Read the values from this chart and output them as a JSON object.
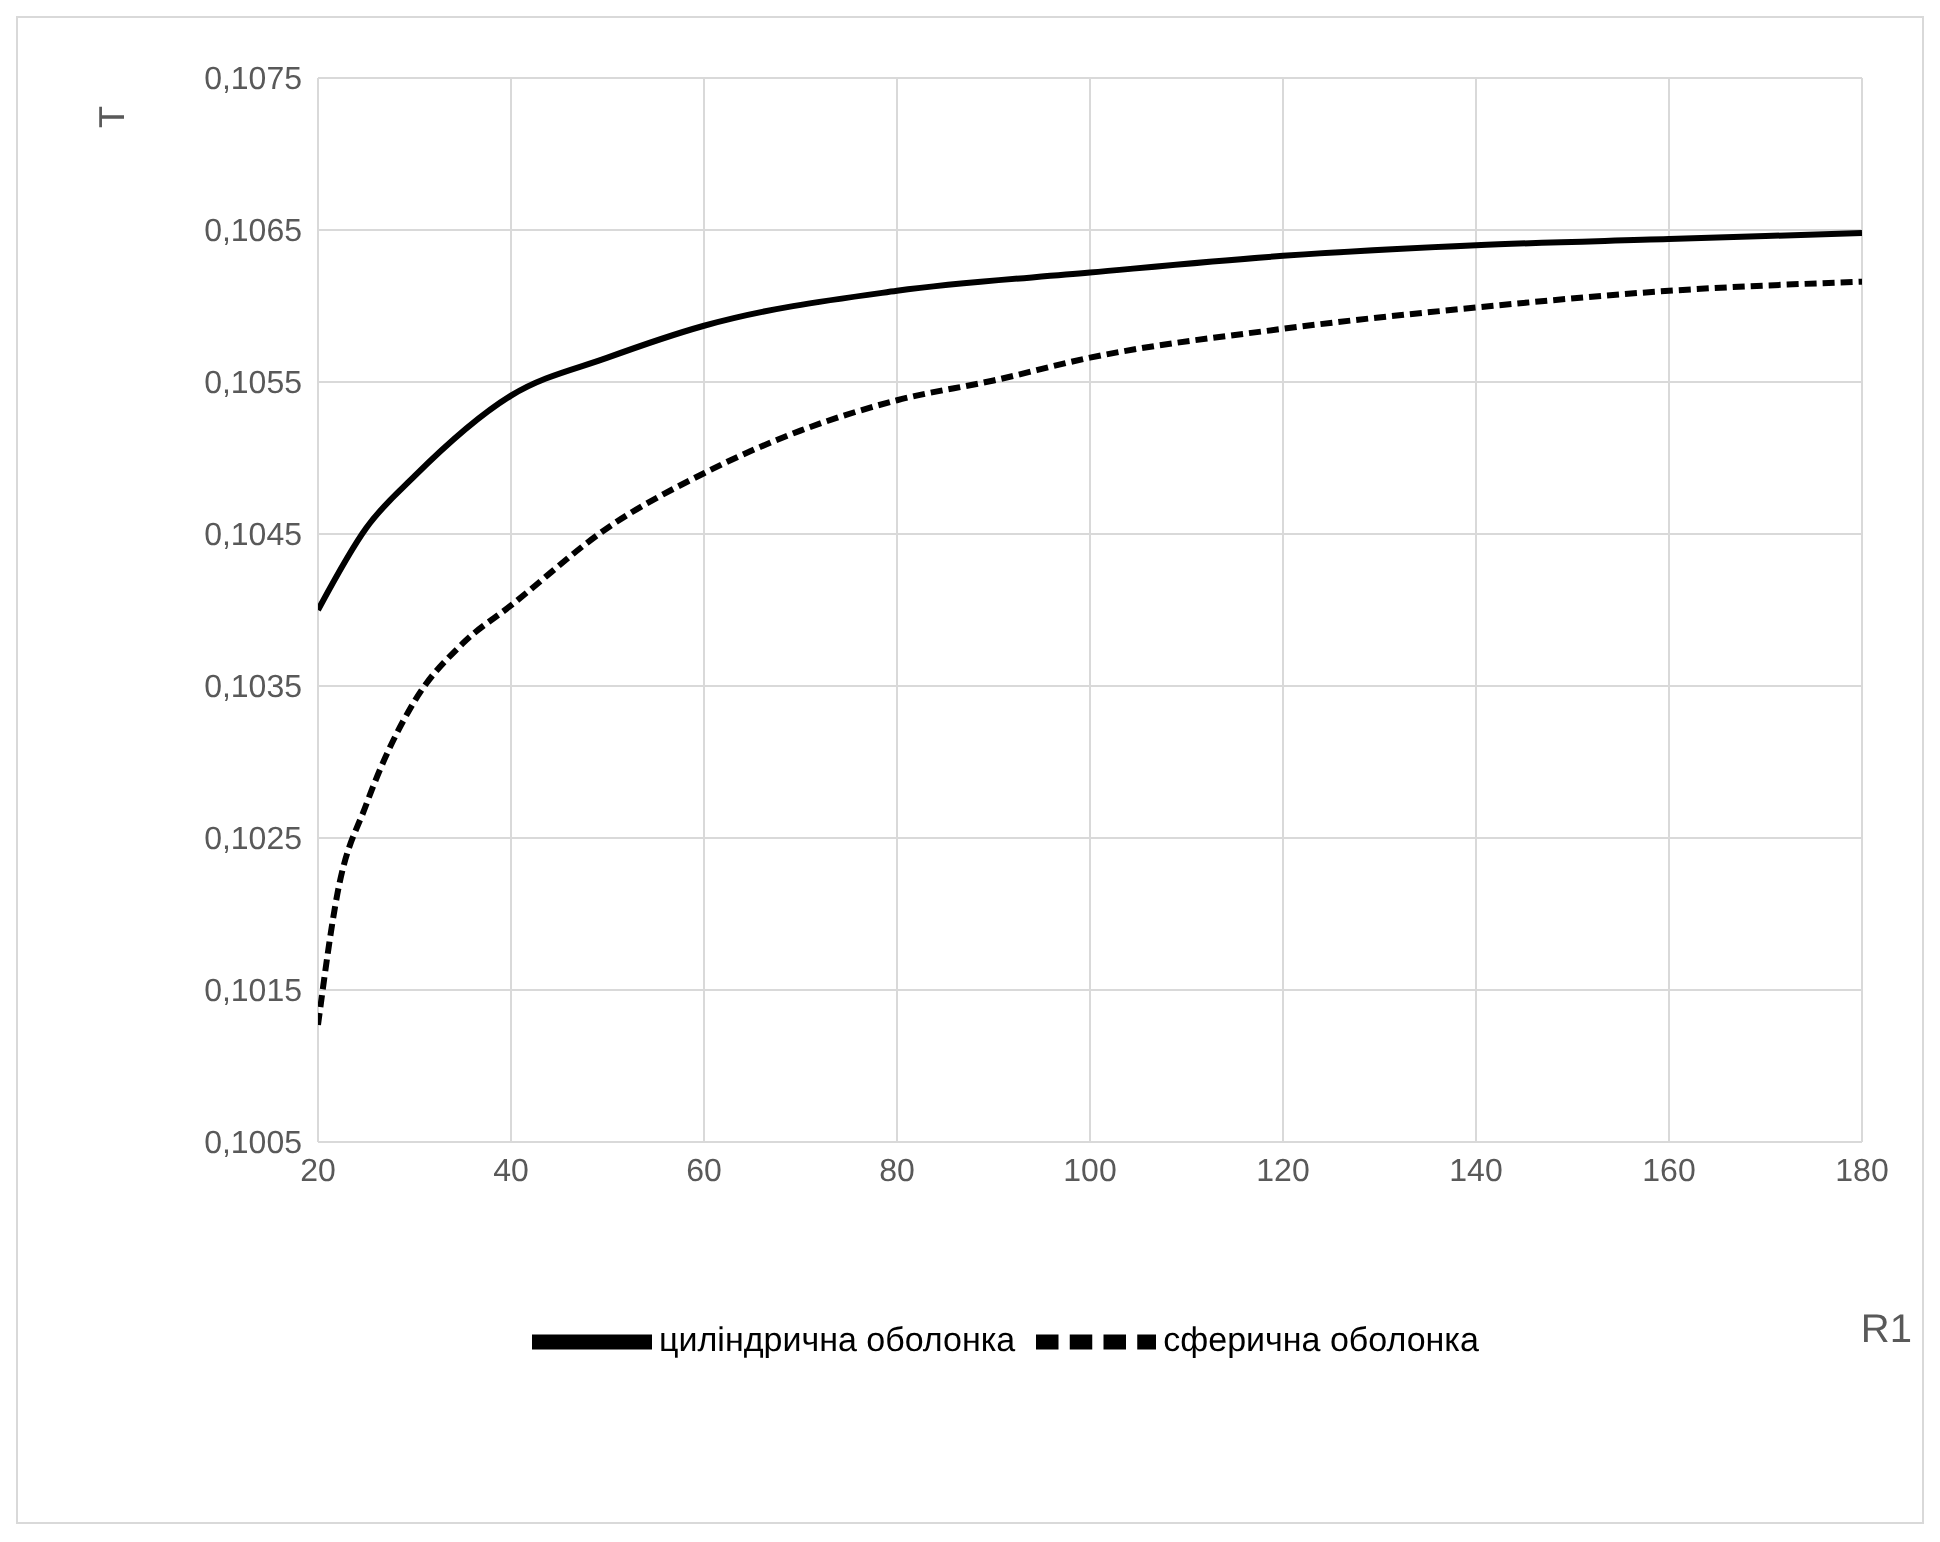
{
  "chart_data": {
    "type": "line",
    "xlabel": "R1",
    "ylabel": "T",
    "xlim": [
      20,
      180
    ],
    "xticks": [
      20,
      40,
      60,
      80,
      100,
      120,
      140,
      160,
      180
    ],
    "ylim": [
      0.1005,
      0.1075
    ],
    "yticks": [
      {
        "value": 0.1005,
        "label": "0,1005"
      },
      {
        "value": 0.1015,
        "label": "0,1015"
      },
      {
        "value": 0.1025,
        "label": "0,1025"
      },
      {
        "value": 0.1035,
        "label": "0,1035"
      },
      {
        "value": 0.1045,
        "label": "0,1045"
      },
      {
        "value": 0.1055,
        "label": "0,1055"
      },
      {
        "value": 0.1065,
        "label": "0,1065"
      },
      {
        "value": 0.1075,
        "label": "0,1075"
      }
    ],
    "grid": true,
    "legend": "bottom",
    "marker": "none",
    "series": [
      {
        "name": "циліндрична оболонка",
        "color": "#000000",
        "line_style": "solid",
        "x": [
          20,
          25,
          30,
          40,
          50,
          60,
          80,
          100,
          120,
          140,
          160,
          180
        ],
        "values": [
          0.104,
          0.10454,
          0.10488,
          0.10541,
          0.10566,
          0.10587,
          0.1061,
          0.10622,
          0.10633,
          0.1064,
          0.10644,
          0.10648
        ]
      },
      {
        "name": "сферична оболонка",
        "color": "#000000",
        "line_style": "dashed",
        "x": [
          20,
          22,
          25,
          30,
          35,
          40,
          50,
          60,
          70,
          80,
          90,
          100,
          120,
          140,
          160,
          180
        ],
        "values": [
          0.10127,
          0.10213,
          0.10272,
          0.1034,
          0.10378,
          0.10403,
          0.10454,
          0.1049,
          0.10518,
          0.10538,
          0.10551,
          0.10566,
          0.10585,
          0.10599,
          0.1061,
          0.10616
        ]
      }
    ]
  }
}
